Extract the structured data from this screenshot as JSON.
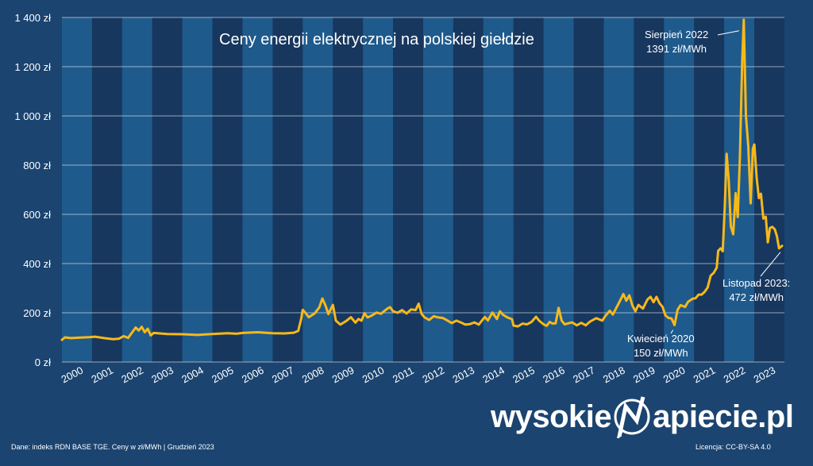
{
  "chart_data": {
    "type": "line",
    "title": "Ceny energii elektrycznej na polskiej giełdzie",
    "xlabel": "",
    "ylabel": "",
    "xlim": [
      2000,
      2024
    ],
    "ylim": [
      0,
      1400
    ],
    "y_ticks": [
      {
        "value": 0,
        "label": "0 zł"
      },
      {
        "value": 200,
        "label": "200 zł"
      },
      {
        "value": 400,
        "label": "400 zł"
      },
      {
        "value": 600,
        "label": "600 zł"
      },
      {
        "value": 800,
        "label": "800 zł"
      },
      {
        "value": 1000,
        "label": "1 000 zł"
      },
      {
        "value": 1200,
        "label": "1 200 zł"
      },
      {
        "value": 1400,
        "label": "1 400 zł"
      }
    ],
    "x_ticks": [
      "2000",
      "2001",
      "2002",
      "2003",
      "2004",
      "2005",
      "2006",
      "2007",
      "2008",
      "2009",
      "2010",
      "2011",
      "2012",
      "2013",
      "2014",
      "2015",
      "2016",
      "2017",
      "2018",
      "2019",
      "2020",
      "2021",
      "2022",
      "2023"
    ],
    "grid": true,
    "alternating_year_bands": true,
    "series": [
      {
        "color": "#f6b91a",
        "points": [
          [
            2000.0,
            90
          ],
          [
            2000.1,
            100
          ],
          [
            2000.3,
            97
          ],
          [
            2000.6,
            99
          ],
          [
            2000.9,
            101
          ],
          [
            2001.1,
            103
          ],
          [
            2001.4,
            97
          ],
          [
            2001.7,
            93
          ],
          [
            2001.9,
            95
          ],
          [
            2002.05,
            105
          ],
          [
            2002.2,
            98
          ],
          [
            2002.3,
            115
          ],
          [
            2002.45,
            140
          ],
          [
            2002.55,
            128
          ],
          [
            2002.65,
            143
          ],
          [
            2002.75,
            121
          ],
          [
            2002.85,
            135
          ],
          [
            2002.95,
            108
          ],
          [
            2003.05,
            118
          ],
          [
            2003.5,
            114
          ],
          [
            2004.0,
            113
          ],
          [
            2004.5,
            110
          ],
          [
            2005.0,
            114
          ],
          [
            2005.5,
            117
          ],
          [
            2005.8,
            115
          ],
          [
            2006.0,
            118
          ],
          [
            2006.5,
            121
          ],
          [
            2007.0,
            117
          ],
          [
            2007.4,
            116
          ],
          [
            2007.7,
            119
          ],
          [
            2007.85,
            126
          ],
          [
            2007.95,
            176
          ],
          [
            2008.0,
            212
          ],
          [
            2008.1,
            198
          ],
          [
            2008.2,
            182
          ],
          [
            2008.4,
            198
          ],
          [
            2008.55,
            222
          ],
          [
            2008.65,
            258
          ],
          [
            2008.75,
            231
          ],
          [
            2008.85,
            195
          ],
          [
            2009.0,
            232
          ],
          [
            2009.1,
            168
          ],
          [
            2009.25,
            152
          ],
          [
            2009.45,
            167
          ],
          [
            2009.6,
            182
          ],
          [
            2009.75,
            160
          ],
          [
            2009.85,
            175
          ],
          [
            2009.95,
            168
          ],
          [
            2010.05,
            198
          ],
          [
            2010.15,
            181
          ],
          [
            2010.3,
            189
          ],
          [
            2010.45,
            201
          ],
          [
            2010.6,
            196
          ],
          [
            2010.8,
            216
          ],
          [
            2010.9,
            223
          ],
          [
            2011.0,
            206
          ],
          [
            2011.15,
            200
          ],
          [
            2011.3,
            211
          ],
          [
            2011.45,
            197
          ],
          [
            2011.6,
            214
          ],
          [
            2011.75,
            211
          ],
          [
            2011.85,
            237
          ],
          [
            2011.95,
            195
          ],
          [
            2012.05,
            181
          ],
          [
            2012.2,
            171
          ],
          [
            2012.35,
            186
          ],
          [
            2012.5,
            181
          ],
          [
            2012.65,
            179
          ],
          [
            2012.8,
            169
          ],
          [
            2012.95,
            158
          ],
          [
            2013.1,
            168
          ],
          [
            2013.25,
            161
          ],
          [
            2013.4,
            152
          ],
          [
            2013.55,
            154
          ],
          [
            2013.7,
            161
          ],
          [
            2013.85,
            152
          ],
          [
            2013.95,
            168
          ],
          [
            2014.05,
            183
          ],
          [
            2014.15,
            169
          ],
          [
            2014.3,
            201
          ],
          [
            2014.45,
            175
          ],
          [
            2014.55,
            206
          ],
          [
            2014.65,
            192
          ],
          [
            2014.8,
            181
          ],
          [
            2014.95,
            174
          ],
          [
            2015.0,
            148
          ],
          [
            2015.15,
            145
          ],
          [
            2015.3,
            156
          ],
          [
            2015.45,
            153
          ],
          [
            2015.6,
            163
          ],
          [
            2015.75,
            184
          ],
          [
            2015.85,
            168
          ],
          [
            2016.0,
            153
          ],
          [
            2016.1,
            147
          ],
          [
            2016.2,
            163
          ],
          [
            2016.3,
            156
          ],
          [
            2016.4,
            157
          ],
          [
            2016.5,
            220
          ],
          [
            2016.6,
            168
          ],
          [
            2016.7,
            153
          ],
          [
            2016.85,
            158
          ],
          [
            2016.95,
            161
          ],
          [
            2017.1,
            149
          ],
          [
            2017.25,
            159
          ],
          [
            2017.4,
            149
          ],
          [
            2017.55,
            165
          ],
          [
            2017.75,
            178
          ],
          [
            2017.95,
            168
          ],
          [
            2018.05,
            187
          ],
          [
            2018.2,
            208
          ],
          [
            2018.3,
            193
          ],
          [
            2018.45,
            228
          ],
          [
            2018.55,
            252
          ],
          [
            2018.65,
            276
          ],
          [
            2018.75,
            249
          ],
          [
            2018.85,
            271
          ],
          [
            2018.95,
            230
          ],
          [
            2019.05,
            206
          ],
          [
            2019.15,
            232
          ],
          [
            2019.3,
            217
          ],
          [
            2019.45,
            254
          ],
          [
            2019.55,
            265
          ],
          [
            2019.65,
            243
          ],
          [
            2019.75,
            265
          ],
          [
            2019.85,
            239
          ],
          [
            2019.95,
            225
          ],
          [
            2020.05,
            189
          ],
          [
            2020.15,
            179
          ],
          [
            2020.25,
            177
          ],
          [
            2020.35,
            150
          ],
          [
            2020.45,
            212
          ],
          [
            2020.55,
            231
          ],
          [
            2020.7,
            224
          ],
          [
            2020.8,
            245
          ],
          [
            2020.95,
            257
          ],
          [
            2021.05,
            259
          ],
          [
            2021.15,
            274
          ],
          [
            2021.25,
            274
          ],
          [
            2021.35,
            285
          ],
          [
            2021.45,
            303
          ],
          [
            2021.55,
            351
          ],
          [
            2021.65,
            362
          ],
          [
            2021.75,
            383
          ],
          [
            2021.8,
            452
          ],
          [
            2021.88,
            462
          ],
          [
            2021.95,
            450
          ],
          [
            2022.02,
            633
          ],
          [
            2022.08,
            846
          ],
          [
            2022.15,
            737
          ],
          [
            2022.22,
            551
          ],
          [
            2022.3,
            519
          ],
          [
            2022.38,
            686
          ],
          [
            2022.45,
            589
          ],
          [
            2022.52,
            830
          ],
          [
            2022.6,
            1230
          ],
          [
            2022.65,
            1391
          ],
          [
            2022.72,
            1001
          ],
          [
            2022.8,
            876
          ],
          [
            2022.88,
            645
          ],
          [
            2022.95,
            866
          ],
          [
            2023.0,
            884
          ],
          [
            2023.08,
            746
          ],
          [
            2023.15,
            666
          ],
          [
            2023.22,
            684
          ],
          [
            2023.3,
            583
          ],
          [
            2023.38,
            590
          ],
          [
            2023.45,
            486
          ],
          [
            2023.52,
            545
          ],
          [
            2023.6,
            549
          ],
          [
            2023.68,
            539
          ],
          [
            2023.75,
            512
          ],
          [
            2023.82,
            462
          ],
          [
            2023.92,
            472
          ]
        ]
      }
    ],
    "annotations": [
      {
        "line1": "Sierpień 2022",
        "line2": "1391 zł/MWh"
      },
      {
        "line1": "Kwiecień 2020",
        "line2": "150 zł/MWh"
      },
      {
        "line1": "Listopad 2023:",
        "line2": "472 zł/MWh"
      }
    ]
  },
  "logo": {
    "left": "wysokie",
    "right": "apiecie.pl"
  },
  "footer": {
    "source": "Dane: indeks RDN BASE TGE. Ceny w zł/MWh  | Grudzień 2023",
    "license": "Licencja: CC-BY-SA 4.0"
  },
  "colors": {
    "background": "#1b4470",
    "band_light": "#1f5a8c",
    "band_dark": "#17375f",
    "line": "#f6b91a",
    "grid": "#ffffff",
    "text": "#ffffff"
  }
}
